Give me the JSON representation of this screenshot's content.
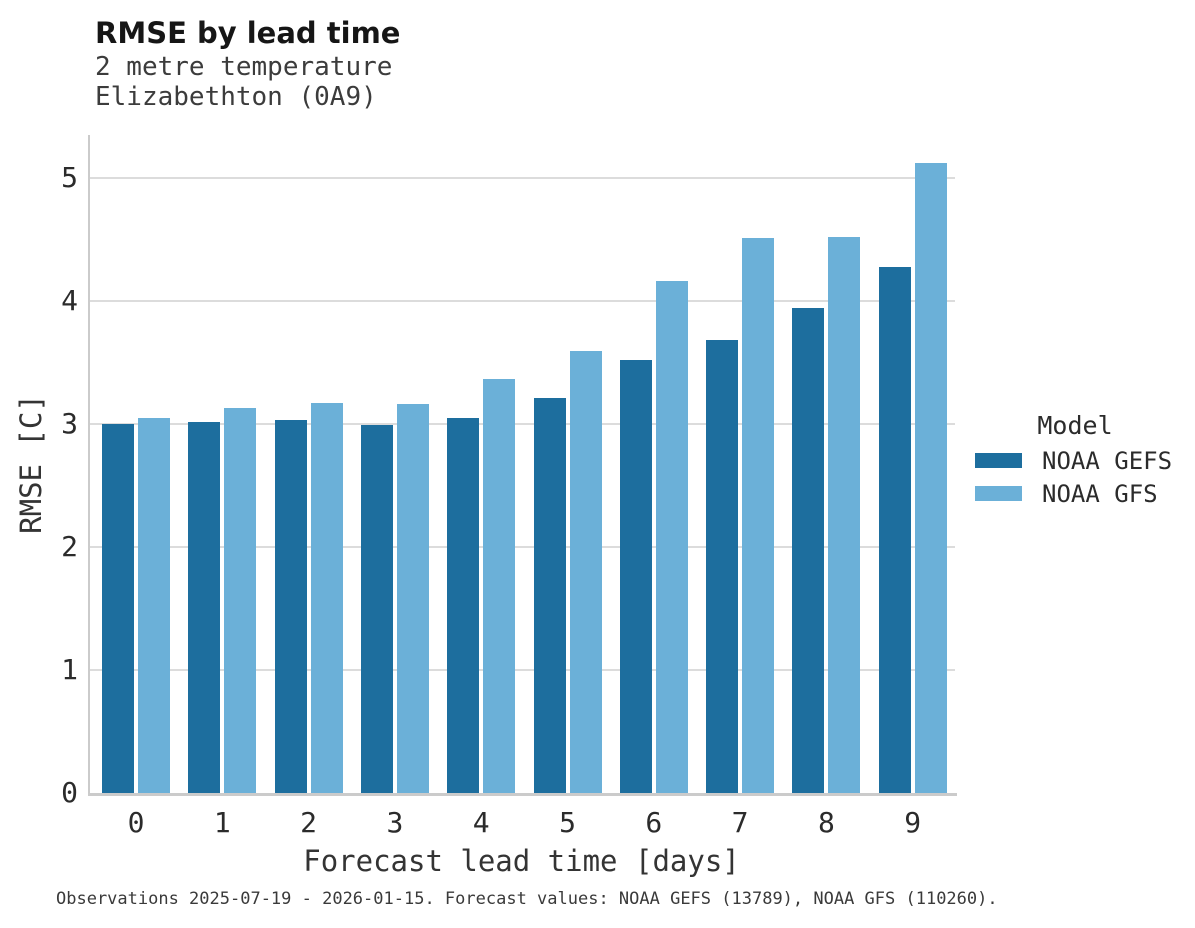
{
  "header": {
    "title": "RMSE by lead time",
    "subtitle_lines": [
      "2 metre temperature",
      "Elizabethton (0A9)"
    ]
  },
  "legend": {
    "title": "Model",
    "entries": [
      {
        "label": "NOAA GEFS",
        "color": "#1d6e9e"
      },
      {
        "label": "NOAA GFS",
        "color": "#6bb0d8"
      }
    ]
  },
  "footer": {
    "note": "Observations 2025-07-19 - 2026-01-15. Forecast values: NOAA GEFS (13789), NOAA GFS (110260)."
  },
  "colors": {
    "grid": "#dcdcdc",
    "axis": "#cbcbcb",
    "series_dark": "#1d6e9e",
    "series_light": "#6bb0d8"
  },
  "chart_data": {
    "type": "bar",
    "title": "RMSE by lead time",
    "subtitle": [
      "2 metre temperature",
      "Elizabethton (0A9)"
    ],
    "categories": [
      "0",
      "1",
      "2",
      "3",
      "4",
      "5",
      "6",
      "7",
      "8",
      "9"
    ],
    "series": [
      {
        "name": "NOAA GEFS",
        "color": "#1d6e9e",
        "values": [
          3.0,
          3.02,
          3.03,
          2.99,
          3.05,
          3.21,
          3.52,
          3.68,
          3.94,
          4.28
        ]
      },
      {
        "name": "NOAA GFS",
        "color": "#6bb0d8",
        "values": [
          3.05,
          3.13,
          3.17,
          3.16,
          3.37,
          3.59,
          4.16,
          4.51,
          4.52,
          5.12
        ]
      }
    ],
    "xlabel": "Forecast lead time [days]",
    "ylabel": "RMSE [C]",
    "ylim": [
      0,
      5.35
    ],
    "yticks": [
      0,
      1,
      2,
      3,
      4,
      5
    ],
    "grid": true,
    "legend_title": "Model",
    "legend_position": "right"
  }
}
